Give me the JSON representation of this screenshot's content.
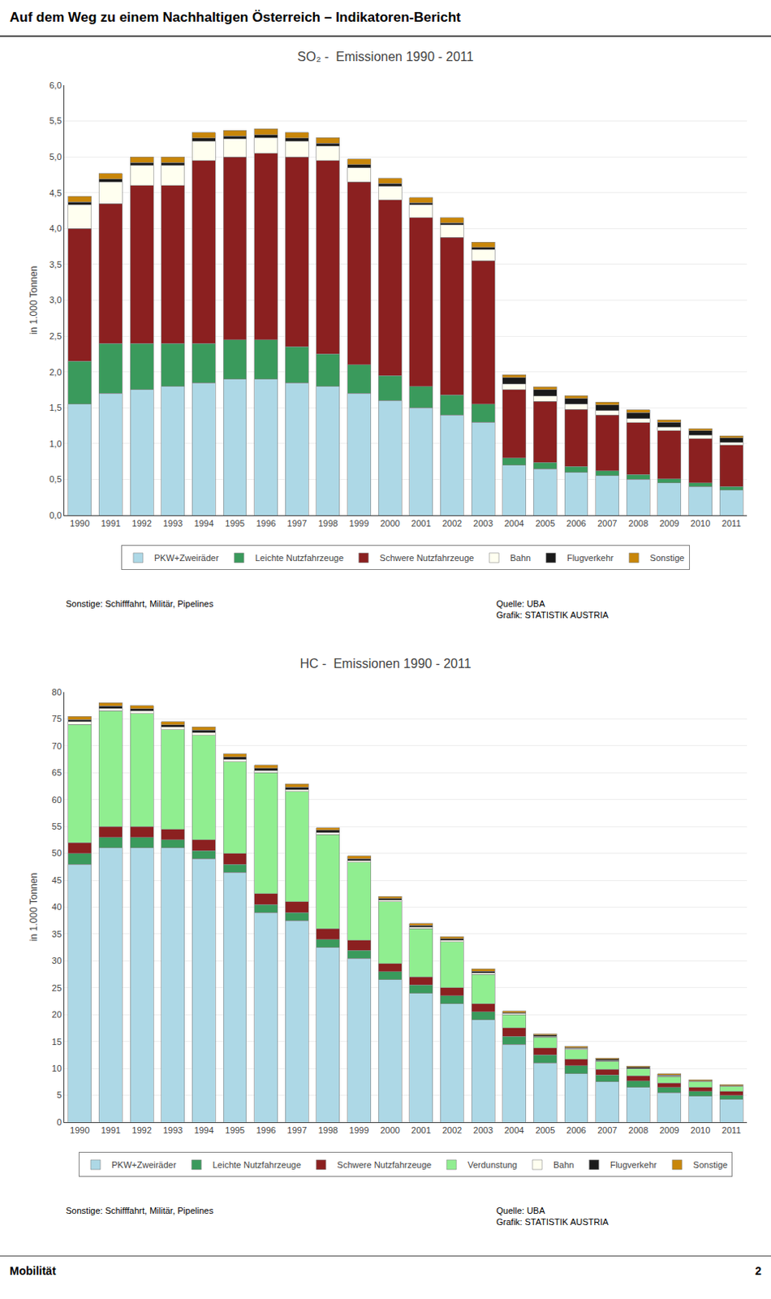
{
  "title": "Auf dem Weg zu einem Nachhaltigen Österreich – Indikatoren-Bericht",
  "annotations": [
    "Mobilität",
    "2"
  ],
  "chart_data": [
    {
      "type": "bar",
      "stacked": true,
      "title": "SO₂ -  Emissionen 1990 - 2011",
      "ylabel": "in 1.000 Tonnen",
      "categories": [
        "1990",
        "1991",
        "1992",
        "1993",
        "1994",
        "1995",
        "1996",
        "1997",
        "1998",
        "1999",
        "2000",
        "2001",
        "2002",
        "2003",
        "2004",
        "2005",
        "2006",
        "2007",
        "2008",
        "2009",
        "2010",
        "2011"
      ],
      "series": [
        {
          "name": "PKW+Zweiräder",
          "color": "#ADD8E6",
          "values": [
            1.55,
            1.7,
            1.75,
            1.8,
            1.85,
            1.9,
            1.9,
            1.85,
            1.8,
            1.7,
            1.6,
            1.5,
            1.4,
            1.3,
            0.7,
            0.65,
            0.6,
            0.55,
            0.5,
            0.45,
            0.4,
            0.35
          ]
        },
        {
          "name": "Leichte Nutzfahrzeuge",
          "color": "#3A9A5C",
          "values": [
            0.6,
            0.7,
            0.65,
            0.6,
            0.55,
            0.55,
            0.55,
            0.5,
            0.45,
            0.4,
            0.35,
            0.3,
            0.28,
            0.25,
            0.1,
            0.09,
            0.08,
            0.07,
            0.07,
            0.06,
            0.05,
            0.05
          ]
        },
        {
          "name": "Schwere Nutzfahrzeuge",
          "color": "#8B2020",
          "values": [
            1.85,
            1.95,
            2.2,
            2.2,
            2.55,
            2.55,
            2.6,
            2.65,
            2.7,
            2.55,
            2.45,
            2.35,
            2.2,
            2.0,
            0.95,
            0.85,
            0.8,
            0.78,
            0.72,
            0.67,
            0.62,
            0.58
          ]
        },
        {
          "name": "Bahn",
          "color": "#FFFFF0",
          "values": [
            0.33,
            0.3,
            0.28,
            0.28,
            0.27,
            0.25,
            0.22,
            0.22,
            0.2,
            0.2,
            0.19,
            0.18,
            0.17,
            0.16,
            0.08,
            0.07,
            0.07,
            0.06,
            0.06,
            0.05,
            0.05,
            0.04
          ]
        },
        {
          "name": "Flugverkehr",
          "color": "#1A1A1A",
          "values": [
            0.04,
            0.04,
            0.04,
            0.04,
            0.04,
            0.04,
            0.04,
            0.04,
            0.04,
            0.04,
            0.04,
            0.03,
            0.03,
            0.03,
            0.09,
            0.09,
            0.08,
            0.08,
            0.08,
            0.07,
            0.06,
            0.06
          ]
        },
        {
          "name": "Sonstige",
          "color": "#C8860A",
          "values": [
            0.08,
            0.08,
            0.08,
            0.08,
            0.08,
            0.08,
            0.08,
            0.08,
            0.08,
            0.08,
            0.07,
            0.07,
            0.07,
            0.07,
            0.04,
            0.04,
            0.04,
            0.04,
            0.04,
            0.03,
            0.03,
            0.03
          ]
        }
      ],
      "ylim": [
        0,
        6.0
      ],
      "yticks": [
        {
          "value": 0.0,
          "label": "0,0"
        },
        {
          "value": 0.5,
          "label": "0,5"
        },
        {
          "value": 1.0,
          "label": "1,0"
        },
        {
          "value": 1.5,
          "label": "1,5"
        },
        {
          "value": 2.0,
          "label": "2,0"
        },
        {
          "value": 2.5,
          "label": "2,5"
        },
        {
          "value": 3.0,
          "label": "3,0"
        },
        {
          "value": 3.5,
          "label": "3,5"
        },
        {
          "value": 4.0,
          "label": "4,0"
        },
        {
          "value": 4.5,
          "label": "4,5"
        },
        {
          "value": 5.0,
          "label": "5,0"
        },
        {
          "value": 5.5,
          "label": "5,5"
        },
        {
          "value": 6.0,
          "label": "6,0"
        }
      ],
      "grid": true,
      "legend": "bottom",
      "annotations": [
        "Sonstige: Schifffahrt, Militär, Pipelines",
        "Quelle: UBA\nGrafik: STATISTIK AUSTRIA"
      ]
    },
    {
      "type": "bar",
      "stacked": true,
      "title": "HC -  Emissionen 1990 - 2011",
      "ylabel": "in 1.000 Tonnen",
      "categories": [
        "1990",
        "1991",
        "1992",
        "1993",
        "1994",
        "1995",
        "1996",
        "1997",
        "1998",
        "1999",
        "2000",
        "2001",
        "2002",
        "2003",
        "2004",
        "2005",
        "2006",
        "2007",
        "2008",
        "2009",
        "2010",
        "2011"
      ],
      "series": [
        {
          "name": "PKW+Zweiräder",
          "color": "#ADD8E6",
          "values": [
            48.0,
            51.0,
            51.0,
            51.0,
            49.0,
            46.5,
            39.0,
            37.5,
            32.5,
            30.5,
            26.5,
            24.0,
            22.0,
            19.0,
            14.5,
            11.0,
            9.0,
            7.5,
            6.5,
            5.5,
            4.8,
            4.2
          ]
        },
        {
          "name": "Leichte Nutzfahrzeuge",
          "color": "#3A9A5C",
          "values": [
            2.0,
            2.0,
            2.0,
            1.5,
            1.5,
            1.5,
            1.5,
            1.5,
            1.5,
            1.5,
            1.5,
            1.5,
            1.5,
            1.5,
            1.5,
            1.5,
            1.5,
            1.3,
            1.2,
            1.0,
            0.9,
            0.8
          ]
        },
        {
          "name": "Schwere Nutzfahrzeuge",
          "color": "#8B2020",
          "values": [
            2.0,
            2.0,
            2.0,
            2.0,
            2.0,
            2.0,
            2.0,
            2.0,
            2.0,
            1.8,
            1.5,
            1.5,
            1.5,
            1.5,
            1.5,
            1.3,
            1.2,
            1.0,
            0.9,
            0.8,
            0.8,
            0.7
          ]
        },
        {
          "name": "Verdunstung",
          "color": "#90EE90",
          "values": [
            22.0,
            21.5,
            21.0,
            18.5,
            19.5,
            17.0,
            22.5,
            20.5,
            17.5,
            14.5,
            11.5,
            9.0,
            8.5,
            5.5,
            2.5,
            2.0,
            1.8,
            1.5,
            1.3,
            1.2,
            1.0,
            0.9
          ]
        },
        {
          "name": "Bahn",
          "color": "#FFFFF0",
          "values": [
            0.5,
            0.5,
            0.5,
            0.5,
            0.5,
            0.5,
            0.4,
            0.4,
            0.4,
            0.3,
            0.3,
            0.3,
            0.3,
            0.3,
            0.2,
            0.2,
            0.2,
            0.2,
            0.1,
            0.1,
            0.1,
            0.1
          ]
        },
        {
          "name": "Flugverkehr",
          "color": "#1A1A1A",
          "values": [
            0.4,
            0.4,
            0.4,
            0.4,
            0.4,
            0.4,
            0.4,
            0.4,
            0.4,
            0.4,
            0.3,
            0.3,
            0.3,
            0.3,
            0.2,
            0.2,
            0.2,
            0.2,
            0.2,
            0.2,
            0.1,
            0.1
          ]
        },
        {
          "name": "Sonstige",
          "color": "#C8860A",
          "values": [
            0.6,
            0.6,
            0.6,
            0.6,
            0.6,
            0.6,
            0.6,
            0.6,
            0.5,
            0.5,
            0.4,
            0.4,
            0.4,
            0.4,
            0.3,
            0.2,
            0.2,
            0.2,
            0.2,
            0.2,
            0.2,
            0.2
          ]
        }
      ],
      "ylim": [
        0,
        80
      ],
      "yticks": [
        0,
        5,
        10,
        15,
        20,
        25,
        30,
        35,
        40,
        45,
        50,
        55,
        60,
        65,
        70,
        75,
        80
      ],
      "grid": true,
      "legend": "bottom",
      "annotations": [
        "Sonstige: Schifffahrt, Militär, Pipelines",
        "Quelle: UBA\nGrafik: STATISTIK AUSTRIA"
      ]
    }
  ]
}
